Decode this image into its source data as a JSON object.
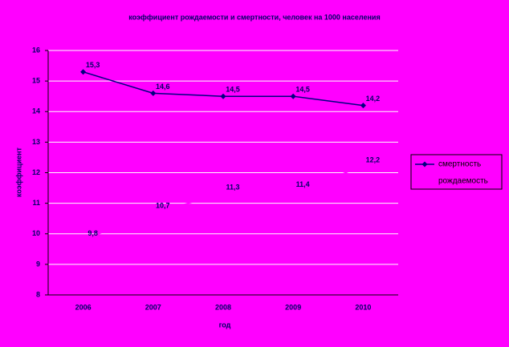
{
  "chart_data": {
    "type": "line",
    "title": "коэффициент рождаемости и смертности, человек на 1000 населения",
    "x_label": "год",
    "y_label": "коэффициент",
    "categories": [
      "2006",
      "2007",
      "2008",
      "2009",
      "2010"
    ],
    "series": [
      {
        "name": "смертность",
        "color": "#000080",
        "marker": "diamond",
        "values": [
          15.3,
          14.6,
          14.5,
          14.5,
          14.2
        ],
        "value_labels": [
          "15,3",
          "14,6",
          "14,5",
          "14,5",
          "14,2"
        ]
      },
      {
        "name": "рождаемость",
        "color": "#ff00ff",
        "marker": "square",
        "values": [
          9.8,
          10.7,
          11.3,
          11.4,
          12.2
        ],
        "value_labels": [
          "9,8",
          "10,7",
          "11,3",
          "11,4",
          "12,2"
        ]
      }
    ],
    "ylim": [
      8,
      16
    ],
    "yticks": [
      8,
      9,
      10,
      11,
      12,
      13,
      14,
      15,
      16
    ],
    "grid": true,
    "legend": "right"
  }
}
